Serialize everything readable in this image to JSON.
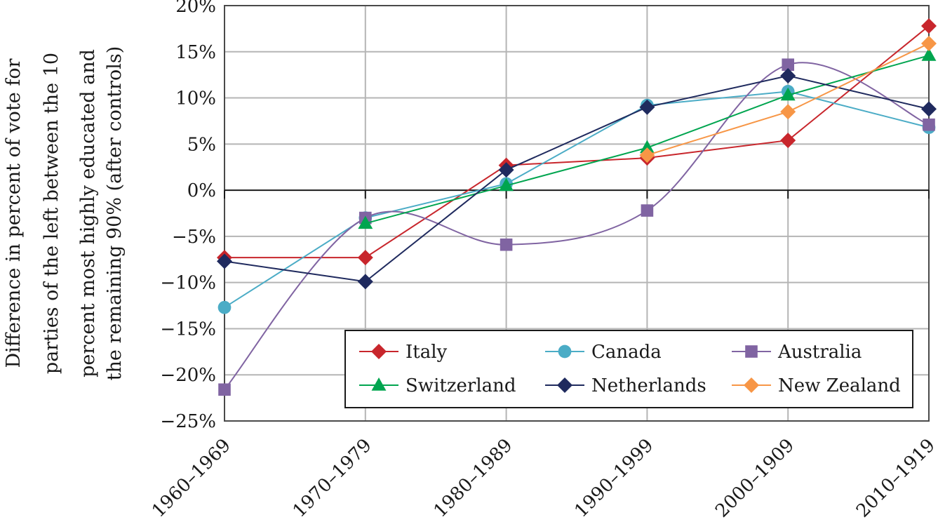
{
  "chart_data": {
    "type": "line",
    "ylabel_lines": [
      "Difference in percent of vote for",
      "parties of the left between the 10",
      "percent most highly educated and",
      "the remaining 90% (after controls)"
    ],
    "xlabel": "",
    "ylim": [
      -25,
      20
    ],
    "y_ticks": [
      20,
      15,
      10,
      5,
      0,
      -5,
      -10,
      -15,
      -20,
      -25
    ],
    "y_tick_labels": [
      "20%",
      "15%",
      "10%",
      "5%",
      "0%",
      "−5%",
      "−10%",
      "−15%",
      "−20%",
      "−25%"
    ],
    "categories": [
      "1960–1969",
      "1970–1979",
      "1980–1989",
      "1990–1999",
      "2000–1909",
      "2010–1919"
    ],
    "grid": true,
    "legend_position": "bottom-right",
    "series": [
      {
        "name": "Italy",
        "color": "#c8262c",
        "marker": "diamond",
        "smooth": false,
        "values": [
          -7.3,
          -7.3,
          2.7,
          3.5,
          5.4,
          17.8
        ]
      },
      {
        "name": "Canada",
        "color": "#4bacc6",
        "marker": "circle",
        "smooth": false,
        "values": [
          -12.7,
          -3.0,
          0.7,
          9.2,
          10.7,
          6.8
        ]
      },
      {
        "name": "Australia",
        "color": "#8064a2",
        "marker": "square",
        "smooth": true,
        "values": [
          -21.6,
          -3.0,
          -5.9,
          -2.2,
          13.6,
          7.1
        ]
      },
      {
        "name": "Switzerland",
        "color": "#00a54f",
        "marker": "triangle",
        "smooth": false,
        "values": [
          null,
          -3.6,
          0.5,
          4.6,
          10.3,
          14.6
        ]
      },
      {
        "name": "Netherlands",
        "color": "#1f2a5e",
        "marker": "diamond",
        "smooth": false,
        "values": [
          -7.7,
          -9.9,
          2.2,
          9.0,
          12.4,
          8.8
        ]
      },
      {
        "name": "New Zealand",
        "color": "#f79646",
        "marker": "diamond",
        "smooth": false,
        "values": [
          null,
          null,
          null,
          3.8,
          8.5,
          15.9
        ]
      }
    ]
  }
}
